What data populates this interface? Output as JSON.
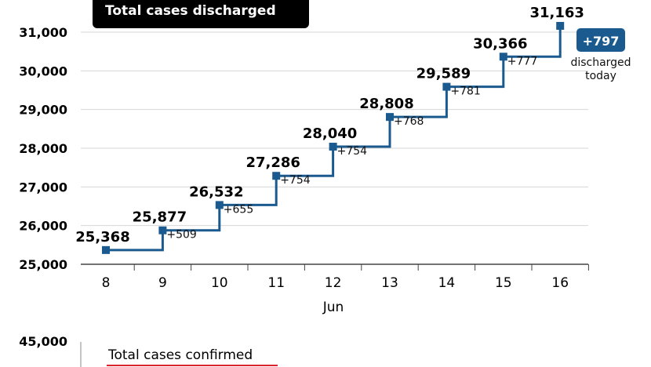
{
  "chart_data": [
    {
      "type": "line",
      "title": "Total cases discharged",
      "xlabel": "Jun",
      "ylabel": "",
      "x": [
        "8",
        "9",
        "10",
        "11",
        "12",
        "13",
        "14",
        "15",
        "16"
      ],
      "values": [
        25368,
        25877,
        26532,
        27286,
        28040,
        28808,
        29589,
        30366,
        31163
      ],
      "value_labels": [
        "25,368",
        "25,877",
        "26,532",
        "27,286",
        "28,040",
        "28,808",
        "29,589",
        "30,366",
        "31,163"
      ],
      "increments": [
        "",
        "+509",
        "+655",
        "+754",
        "+754",
        "+768",
        "+781",
        "+777",
        ""
      ],
      "ylim": [
        25000,
        31000
      ],
      "yticks": [
        25000,
        26000,
        27000,
        28000,
        29000,
        30000,
        31000
      ],
      "ytick_labels": [
        "25,000",
        "26,000",
        "27,000",
        "28,000",
        "29,000",
        "30,000",
        "31,000"
      ],
      "grid": true,
      "style": "step",
      "line_color": "#1a5a8f",
      "highlight": {
        "badge": "+797",
        "badge_color": "#1a5a8f",
        "text_line1": "discharged",
        "text_line2": "today"
      }
    },
    {
      "type": "line",
      "title": "Total cases confirmed",
      "yticks_visible": [
        "45,000"
      ],
      "title_underline_color": "#d9232d"
    }
  ]
}
